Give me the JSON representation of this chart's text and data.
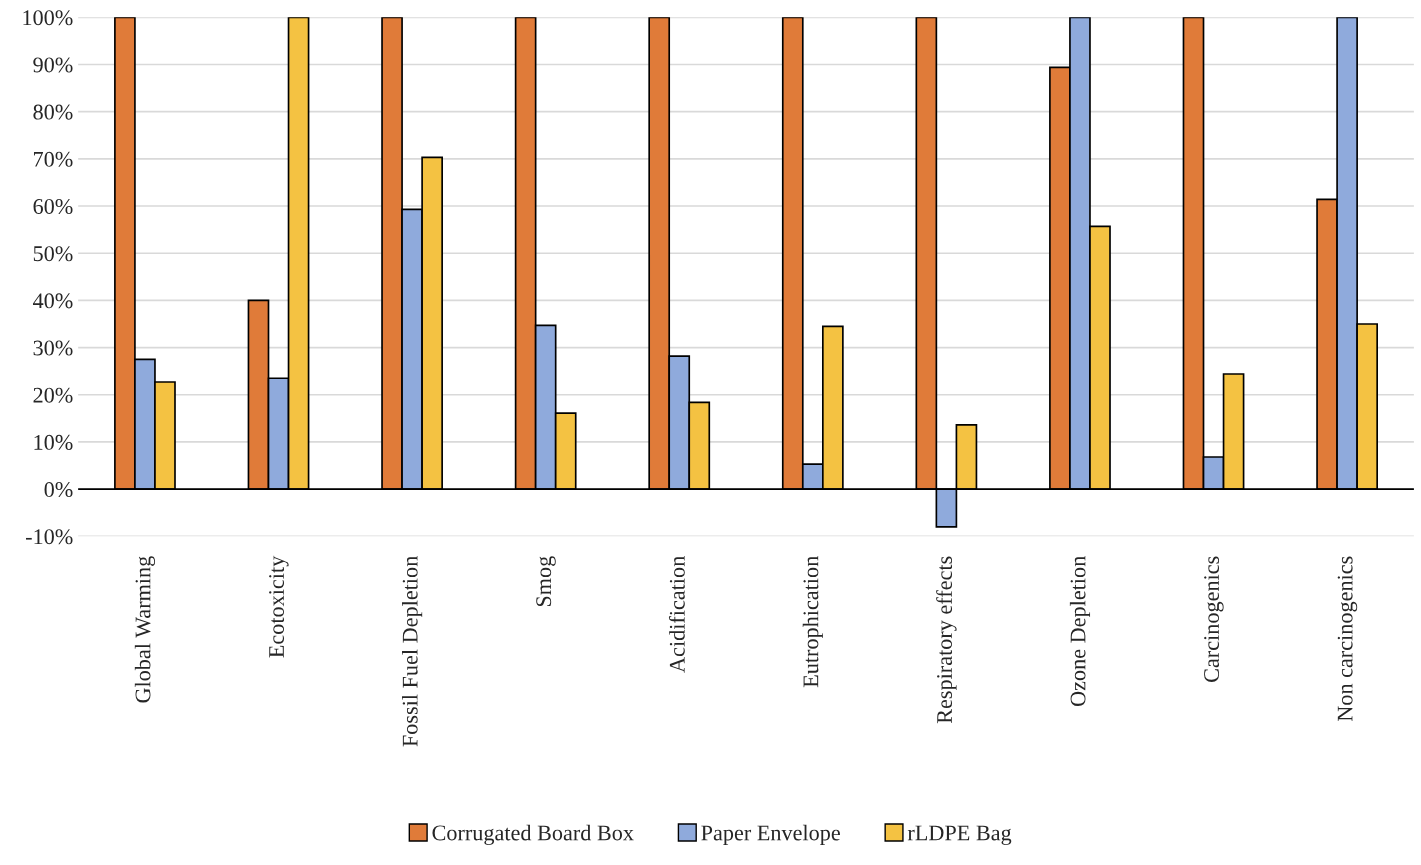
{
  "chart_data": {
    "type": "bar",
    "categories": [
      "Global Warming",
      "Ecotoxicity",
      "Fossil Fuel Depletion",
      "Smog",
      "Acidification",
      "Eutrophication",
      "Respiratory effects",
      "Ozone Depletion",
      "Carcinogenics",
      "Non carcinogenics"
    ],
    "series": [
      {
        "name": "Corrugated Board Box",
        "color": "#e07b39",
        "values": [
          100,
          40,
          100,
          100,
          100,
          100,
          100,
          89.4,
          100,
          61.4
        ]
      },
      {
        "name": "Paper Envelope",
        "color": "#8faadc",
        "values": [
          27.5,
          23.5,
          59.3,
          34.7,
          28.2,
          5.3,
          -8,
          100,
          6.8,
          100
        ]
      },
      {
        "name": "rLDPE Bag",
        "color": "#f4c242",
        "values": [
          22.7,
          100,
          70.3,
          16.1,
          18.4,
          34.5,
          13.6,
          55.7,
          24.4,
          35
        ]
      }
    ],
    "ylim": [
      -10,
      100
    ],
    "yticks": [
      {
        "value": -10,
        "label": "-10%"
      },
      {
        "value": 0,
        "label": "0%"
      },
      {
        "value": 10,
        "label": "10%"
      },
      {
        "value": 20,
        "label": "20%"
      },
      {
        "value": 30,
        "label": "30%"
      },
      {
        "value": 40,
        "label": "40%"
      },
      {
        "value": 50,
        "label": "50%"
      },
      {
        "value": 60,
        "label": "60%"
      },
      {
        "value": 70,
        "label": "70%"
      },
      {
        "value": 80,
        "label": "80%"
      },
      {
        "value": 90,
        "label": "90%"
      },
      {
        "value": 100,
        "label": "100%"
      }
    ],
    "grid": "y",
    "legend": "bottom"
  }
}
